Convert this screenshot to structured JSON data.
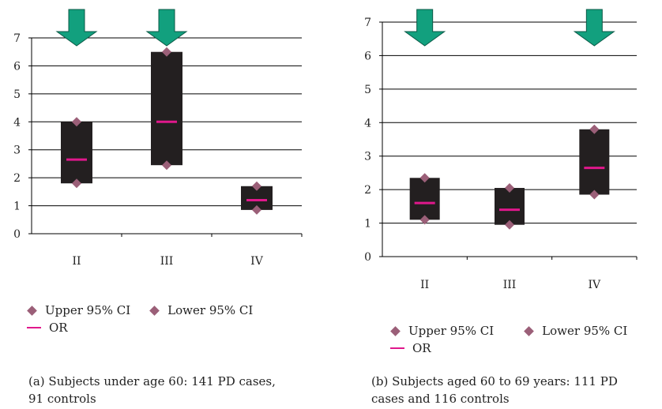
{
  "colors": {
    "box": "#231f20",
    "marker": "#9b5f78",
    "or_line": "#e0188c",
    "arrow_fill": "#12a07e",
    "arrow_stroke": "#0b5a47",
    "grid": "#000000"
  },
  "legend": {
    "upper": "Upper 95% CI",
    "lower": "Lower 95% CI",
    "or": "OR"
  },
  "chart_data": [
    {
      "type": "box",
      "caption": "(a) Subjects under age 60: 141 PD cases, 91 controls",
      "categories": [
        "II",
        "III",
        "IV"
      ],
      "ylim": [
        0,
        7
      ],
      "yticks": [
        "0",
        "1",
        "2",
        "3",
        "4",
        "5",
        "6",
        "7"
      ],
      "series": [
        {
          "name": "Upper 95% CI",
          "values": [
            4.0,
            6.5,
            1.7
          ]
        },
        {
          "name": "Lower 95% CI",
          "values": [
            1.8,
            2.45,
            0.85
          ]
        },
        {
          "name": "OR",
          "values": [
            2.65,
            4.0,
            1.2
          ]
        }
      ],
      "arrows": [
        "II",
        "III"
      ]
    },
    {
      "type": "box",
      "caption": "(b) Subjects aged 60 to 69 years: 111 PD cases and 116 controls",
      "categories": [
        "II",
        "III",
        "IV"
      ],
      "ylim": [
        0,
        7
      ],
      "yticks": [
        "0",
        "1",
        "2",
        "3",
        "4",
        "5",
        "6",
        "7"
      ],
      "series": [
        {
          "name": "Upper 95% CI",
          "values": [
            2.35,
            2.05,
            3.8
          ]
        },
        {
          "name": "Lower 95% CI",
          "values": [
            1.1,
            0.95,
            1.85
          ]
        },
        {
          "name": "OR",
          "values": [
            1.6,
            1.4,
            2.65
          ]
        }
      ],
      "arrows": [
        "II",
        "IV"
      ]
    }
  ]
}
